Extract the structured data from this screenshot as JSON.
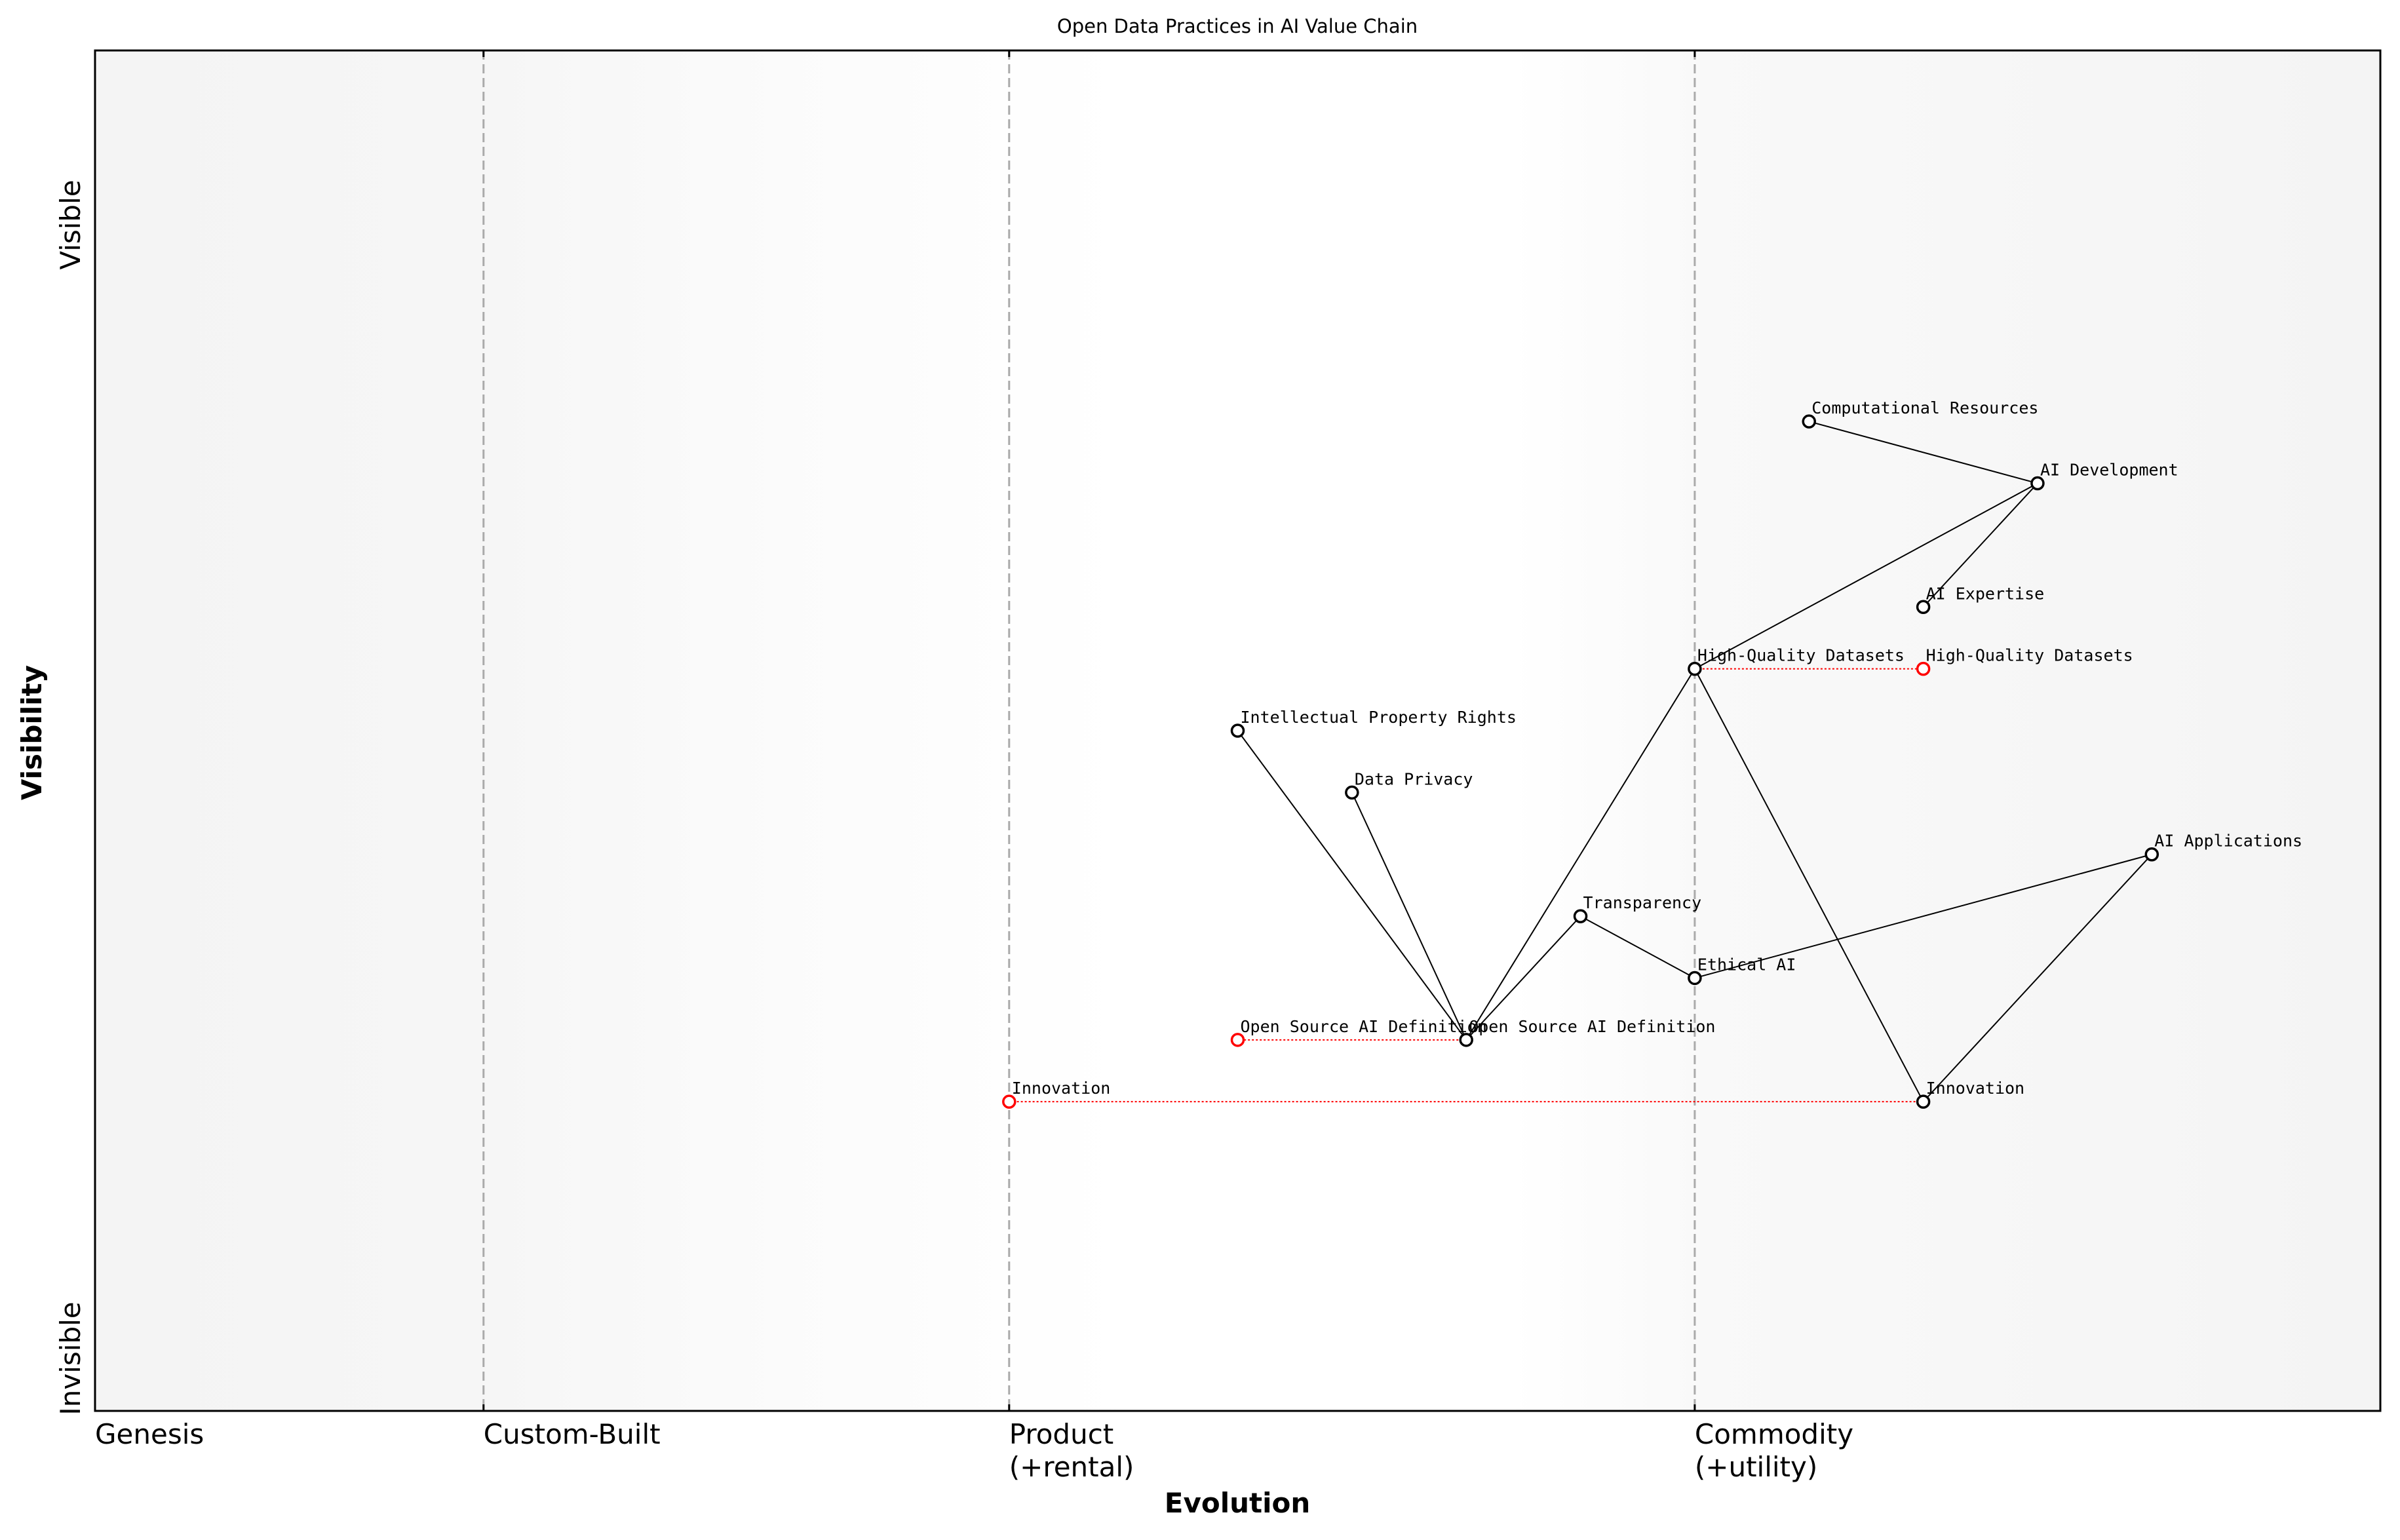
{
  "chart_data": {
    "type": "wardley",
    "title": "Open Data Practices in AI Value Chain",
    "x_label": "Evolution",
    "y_label": "Visibility",
    "xlim": [
      0,
      1
    ],
    "ylim": [
      0,
      1.1
    ],
    "stages": [
      {
        "value": 0,
        "label": "Genesis"
      },
      {
        "value": 0.17,
        "label": "Custom-Built"
      },
      {
        "value": 0.4,
        "label": "Product\n(+rental)"
      },
      {
        "value": 0.7,
        "label": "Commodity\n(+utility)"
      }
    ],
    "visibility_labels": {
      "top": "Visible",
      "bottom": "Invisible"
    },
    "components": [
      {
        "name": "Computational Resources",
        "x": 0.75,
        "y": 0.8
      },
      {
        "name": "AI Development",
        "x": 0.85,
        "y": 0.75
      },
      {
        "name": "AI Expertise",
        "x": 0.8,
        "y": 0.65
      },
      {
        "name": "High-Quality Datasets",
        "x": 0.7,
        "y": 0.6
      },
      {
        "name": "Intellectual Property Rights",
        "x": 0.5,
        "y": 0.55
      },
      {
        "name": "Data Privacy",
        "x": 0.55,
        "y": 0.5
      },
      {
        "name": "AI Applications",
        "x": 0.9,
        "y": 0.45
      },
      {
        "name": "Transparency",
        "x": 0.65,
        "y": 0.4
      },
      {
        "name": "Ethical AI",
        "x": 0.7,
        "y": 0.35
      },
      {
        "name": "Open Source AI Definition",
        "x": 0.6,
        "y": 0.3
      },
      {
        "name": "Innovation",
        "x": 0.8,
        "y": 0.25
      }
    ],
    "links": [
      [
        "Computational Resources",
        "AI Development"
      ],
      [
        "AI Development",
        "AI Expertise"
      ],
      [
        "AI Development",
        "High-Quality Datasets"
      ],
      [
        "High-Quality Datasets",
        "Open Source AI Definition"
      ],
      [
        "High-Quality Datasets",
        "Innovation"
      ],
      [
        "Open Source AI Definition",
        "Intellectual Property Rights"
      ],
      [
        "Open Source AI Definition",
        "Data Privacy"
      ],
      [
        "Open Source AI Definition",
        "Transparency"
      ],
      [
        "Transparency",
        "Ethical AI"
      ],
      [
        "Ethical AI",
        "AI Applications"
      ],
      [
        "AI Applications",
        "Innovation"
      ]
    ],
    "evolutions": [
      {
        "name": "High-Quality Datasets",
        "to": 0.8
      },
      {
        "name": "Open Source AI Definition",
        "to": 0.5
      },
      {
        "name": "Innovation",
        "to": 0.4
      }
    ],
    "component_color": "#000000",
    "evolution_color": "#ff0000"
  }
}
